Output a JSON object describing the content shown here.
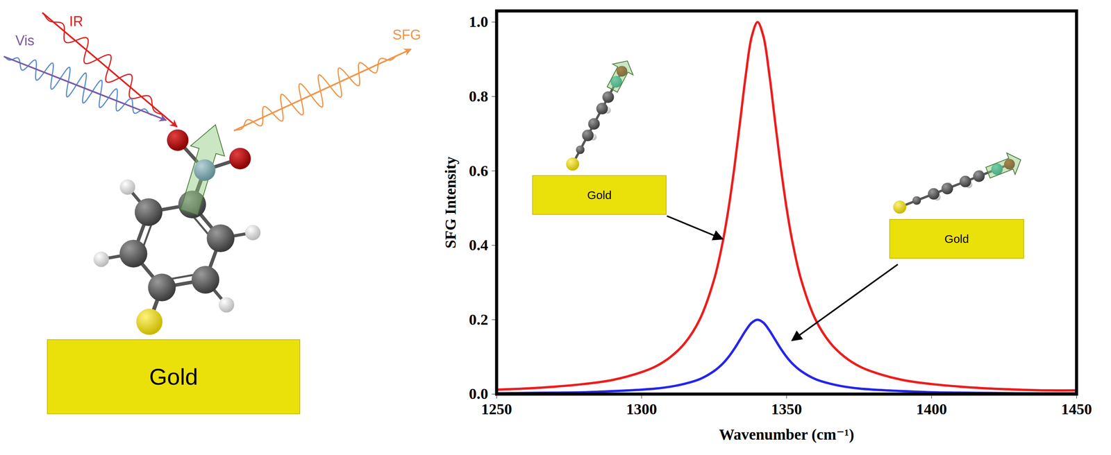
{
  "chart_data": {
    "type": "line",
    "x_label": "Wavenumber (cm⁻¹)",
    "y_label": "SFG Intensity",
    "x": [
      1250,
      1260,
      1270,
      1280,
      1290,
      1300,
      1305,
      1310,
      1315,
      1320,
      1325,
      1328,
      1330,
      1332,
      1334,
      1336,
      1338,
      1340,
      1342,
      1344,
      1346,
      1348,
      1350,
      1352,
      1355,
      1360,
      1365,
      1370,
      1375,
      1380,
      1390,
      1400,
      1410,
      1420,
      1430,
      1440,
      1450
    ],
    "series": [
      {
        "color": "#ee1c1c",
        "values": [
          0.012,
          0.015,
          0.02,
          0.027,
          0.038,
          0.059,
          0.075,
          0.1,
          0.138,
          0.2,
          0.308,
          0.41,
          0.5,
          0.61,
          0.735,
          0.862,
          0.962,
          1.0,
          0.962,
          0.862,
          0.735,
          0.61,
          0.5,
          0.41,
          0.308,
          0.2,
          0.138,
          0.1,
          0.075,
          0.059,
          0.038,
          0.027,
          0.02,
          0.015,
          0.012,
          0.01,
          0.01
        ]
      },
      {
        "color": "#2424ee",
        "values": [
          0.002,
          0.003,
          0.004,
          0.005,
          0.008,
          0.012,
          0.015,
          0.02,
          0.028,
          0.04,
          0.062,
          0.082,
          0.1,
          0.122,
          0.147,
          0.172,
          0.192,
          0.2,
          0.192,
          0.172,
          0.147,
          0.122,
          0.1,
          0.082,
          0.062,
          0.04,
          0.028,
          0.02,
          0.015,
          0.012,
          0.008,
          0.005,
          0.004,
          0.003,
          0.002,
          0.002,
          0.002
        ]
      }
    ],
    "xlim": [
      1250,
      1450
    ],
    "xticks": [
      1250,
      1300,
      1350,
      1400,
      1450
    ],
    "ylim": [
      0,
      1.03
    ],
    "yticks": [
      {
        "value": 0,
        "label": "0.0"
      },
      0.2,
      0.4,
      0.6,
      0.8,
      {
        "value": 1,
        "label": "1.0"
      }
    ],
    "grid": false,
    "annotations": [
      "Gold",
      "Gold"
    ]
  },
  "diagram": {
    "beams": [
      "IR",
      "Vis",
      "SFG"
    ],
    "substrate": "Gold"
  }
}
